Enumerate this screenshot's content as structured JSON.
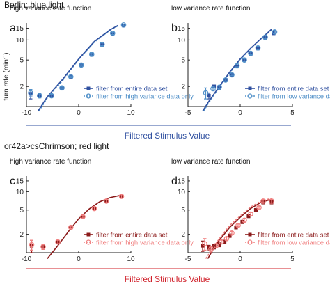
{
  "figure": {
    "sections": [
      {
        "title": "Berlin; blue light",
        "xlabel": "Filtered Stimulus Value",
        "color": "#3050a0"
      },
      {
        "title": "or42a>csChrimson; red light",
        "xlabel": "Filtered Stimulus Value",
        "color": "#d0202a"
      }
    ],
    "ylabel_main": "turn rate (min",
    "ylabel_sup": "-1",
    "ylabel_tail": ")"
  },
  "chart_data": [
    {
      "type": "scatter",
      "panel_letter": "a",
      "title": "high variance rate function",
      "xlim": [
        -10,
        10
      ],
      "xticks": [
        -10,
        0,
        10
      ],
      "xtick_labels": [
        "-10",
        "0",
        "10"
      ],
      "ylim": [
        1,
        18
      ],
      "yscale": "log",
      "yticks": [
        2,
        5,
        10,
        15
      ],
      "ytick_labels": [
        "2",
        "5",
        "10",
        "15"
      ],
      "legend": "bottom-right",
      "fit_solid": [
        [
          -7.8,
          0.85
        ],
        [
          -6,
          1.4
        ],
        [
          -3,
          2.6
        ],
        [
          0,
          5.2
        ],
        [
          3,
          9.5
        ],
        [
          6,
          14.2
        ],
        [
          7.5,
          16.5
        ]
      ],
      "fit_dashed": [
        [
          -7.6,
          0.85
        ],
        [
          -6,
          1.35
        ],
        [
          -3,
          2.5
        ],
        [
          0,
          5.1
        ],
        [
          3,
          9.3
        ],
        [
          6,
          14
        ],
        [
          7.5,
          16.3
        ]
      ],
      "series": [
        {
          "name": "filter from entire data set",
          "color": "#3050a0",
          "marker": "square",
          "x": [
            -9.2,
            -7.5,
            -5.2,
            -3.2,
            -1.5,
            0.5,
            2.5,
            4.5,
            6.5,
            8.6
          ],
          "y": [
            1.55,
            1.45,
            1.45,
            1.9,
            2.8,
            4.2,
            6.0,
            8.5,
            12.5,
            16.5
          ],
          "err": [
            0.25,
            0.1,
            0.08,
            0.08,
            0.08,
            0.15,
            0.3,
            0.4,
            0.5,
            0.5
          ]
        },
        {
          "name": "filter from high variance data only",
          "color": "#4f8fc8",
          "marker": "circle",
          "x": [
            -9.2,
            -7.5,
            -5.2,
            -3.2,
            -1.5,
            0.5,
            2.5,
            4.5,
            6.5,
            8.6
          ],
          "y": [
            1.6,
            1.45,
            1.45,
            1.9,
            2.8,
            4.2,
            6.1,
            8.6,
            12.6,
            16.8
          ],
          "err": [
            0.2,
            0.1,
            0.08,
            0.08,
            0.08,
            0.15,
            0.3,
            0.4,
            0.5,
            0.5
          ]
        }
      ]
    },
    {
      "type": "scatter",
      "panel_letter": "b",
      "title": "low variance rate function",
      "xlim": [
        -5,
        5
      ],
      "xticks": [
        -5,
        0,
        5
      ],
      "xtick_labels": [
        "-5",
        "0",
        "5"
      ],
      "ylim": [
        1,
        18
      ],
      "yscale": "log",
      "yticks": [
        2,
        5,
        10,
        15
      ],
      "ytick_labels": [
        "2",
        "5",
        "10",
        "15"
      ],
      "legend": "bottom-right",
      "fit_solid": [
        [
          -3.6,
          0.85
        ],
        [
          -3,
          1.2
        ],
        [
          -2,
          2.0
        ],
        [
          -1,
          3.3
        ],
        [
          0,
          5.2
        ],
        [
          1,
          7.5
        ],
        [
          2,
          10.5
        ],
        [
          3,
          14.5
        ]
      ],
      "fit_dashed": [
        [
          -3.5,
          0.85
        ],
        [
          -3,
          1.15
        ],
        [
          -2,
          1.95
        ],
        [
          -1,
          3.2
        ],
        [
          0,
          5.1
        ],
        [
          1,
          7.4
        ],
        [
          2,
          10.3
        ],
        [
          3,
          14.2
        ]
      ],
      "series": [
        {
          "name": "filter from entire data set",
          "color": "#3050a0",
          "marker": "square",
          "x": [
            -3.0,
            -2.5,
            -2.0,
            -1.4,
            -0.8,
            -0.3,
            0.4,
            1.0,
            1.7,
            2.4,
            3.2
          ],
          "y": [
            1.45,
            2.0,
            1.9,
            2.5,
            3.0,
            4.0,
            5.0,
            6.2,
            7.5,
            10.8,
            12.8
          ],
          "err": [
            0.15,
            0.1,
            0.08,
            0.08,
            0.1,
            0.15,
            0.2,
            0.3,
            0.4,
            0.6,
            0.8
          ]
        },
        {
          "name": "filter from low variance data only",
          "color": "#4f8fc8",
          "marker": "circle",
          "x": [
            -3.3,
            -2.6,
            -2.0,
            -1.4,
            -0.8,
            -0.3,
            0.4,
            1.0,
            1.7,
            2.4,
            3.3
          ],
          "y": [
            1.6,
            1.85,
            1.95,
            2.5,
            3.0,
            4.1,
            5.0,
            6.3,
            7.6,
            11.0,
            13.2
          ],
          "err": [
            0.3,
            0.12,
            0.08,
            0.08,
            0.1,
            0.15,
            0.2,
            0.3,
            0.4,
            0.6,
            0.8
          ]
        }
      ]
    },
    {
      "type": "scatter",
      "panel_letter": "c",
      "title": "high variance rate function",
      "xlim": [
        -10,
        10
      ],
      "xticks": [
        -10,
        0,
        10
      ],
      "xtick_labels": [
        "-10",
        "0",
        "10"
      ],
      "ylim": [
        1,
        18
      ],
      "yscale": "log",
      "yticks": [
        2,
        5,
        10,
        15
      ],
      "ytick_labels": [
        "2",
        "5",
        "10",
        "15"
      ],
      "legend": "bottom-right",
      "fit_solid": [
        [
          -6,
          0.8
        ],
        [
          -4,
          1.3
        ],
        [
          -2,
          2.2
        ],
        [
          0,
          3.6
        ],
        [
          2,
          5.2
        ],
        [
          4,
          6.8
        ],
        [
          6,
          8.0
        ],
        [
          8,
          8.7
        ]
      ],
      "fit_dashed": [],
      "series": [
        {
          "name": "filter from entire data set",
          "color": "#8b1a1a",
          "marker": "square",
          "x": [
            -9.0,
            -6.8,
            -4.0,
            -1.5,
            0.8,
            3.0,
            5.3,
            8.2
          ],
          "y": [
            1.3,
            1.25,
            1.5,
            2.6,
            3.9,
            5.3,
            7.0,
            8.4
          ],
          "err": [
            0.3,
            0.12,
            0.1,
            0.12,
            0.2,
            0.3,
            0.4,
            0.5
          ]
        },
        {
          "name": "filter from high variance data only",
          "color": "#f08080",
          "marker": "circle",
          "x": [
            -9.0,
            -6.8,
            -4.0,
            -1.5,
            0.8,
            3.0,
            5.3,
            8.2
          ],
          "y": [
            1.35,
            1.25,
            1.5,
            2.6,
            3.9,
            5.3,
            7.0,
            8.4
          ],
          "err": [
            0.25,
            0.12,
            0.1,
            0.12,
            0.2,
            0.3,
            0.4,
            0.5
          ]
        }
      ]
    },
    {
      "type": "scatter",
      "panel_letter": "d",
      "title": "low variance rate function",
      "xlim": [
        -5,
        5
      ],
      "xticks": [
        -5,
        0,
        5
      ],
      "xtick_labels": [
        "-5",
        "0",
        "5"
      ],
      "ylim": [
        1,
        18
      ],
      "yscale": "log",
      "yticks": [
        2,
        5,
        10,
        15
      ],
      "ytick_labels": [
        "2",
        "5",
        "10",
        "15"
      ],
      "legend": "bottom-right",
      "fit_solid": [
        [
          -3.1,
          0.8
        ],
        [
          -2.5,
          1.2
        ],
        [
          -2,
          1.6
        ],
        [
          -1,
          2.6
        ],
        [
          0,
          3.8
        ],
        [
          1,
          5.3
        ],
        [
          2,
          6.7
        ],
        [
          3,
          7.5
        ]
      ],
      "fit_dashed": [
        [
          -3.3,
          0.8
        ],
        [
          -2.6,
          1.2
        ],
        [
          -2,
          1.7
        ],
        [
          -1,
          2.8
        ],
        [
          0,
          4.0
        ],
        [
          1,
          5.6
        ],
        [
          2,
          7.0
        ],
        [
          3,
          7.8
        ]
      ],
      "series": [
        {
          "name": "filter from entire data set",
          "color": "#8b1a1a",
          "marker": "square",
          "x": [
            -3.6,
            -3.0,
            -2.5,
            -2.0,
            -1.5,
            -1.0,
            -0.4,
            0.2,
            0.8,
            1.5,
            2.2,
            3.0
          ],
          "y": [
            1.3,
            1.2,
            1.25,
            1.35,
            1.5,
            1.9,
            2.6,
            3.2,
            4.0,
            5.0,
            6.7,
            6.8
          ],
          "err": [
            0.25,
            0.12,
            0.1,
            0.1,
            0.1,
            0.12,
            0.15,
            0.2,
            0.25,
            0.3,
            0.4,
            0.5
          ]
        },
        {
          "name": "filter from low variance data only",
          "color": "#f08080",
          "marker": "circle",
          "x": [
            -3.4,
            -2.8,
            -2.3,
            -1.8,
            -1.3,
            -0.8,
            -0.2,
            0.4,
            1.0,
            1.8,
            2.2,
            3.0
          ],
          "y": [
            1.4,
            1.15,
            1.3,
            1.5,
            1.7,
            2.1,
            2.8,
            3.4,
            4.3,
            5.5,
            7.0,
            7.0
          ],
          "err": [
            0.3,
            0.12,
            0.1,
            0.1,
            0.1,
            0.12,
            0.15,
            0.2,
            0.25,
            0.3,
            0.4,
            0.5
          ]
        }
      ]
    }
  ]
}
